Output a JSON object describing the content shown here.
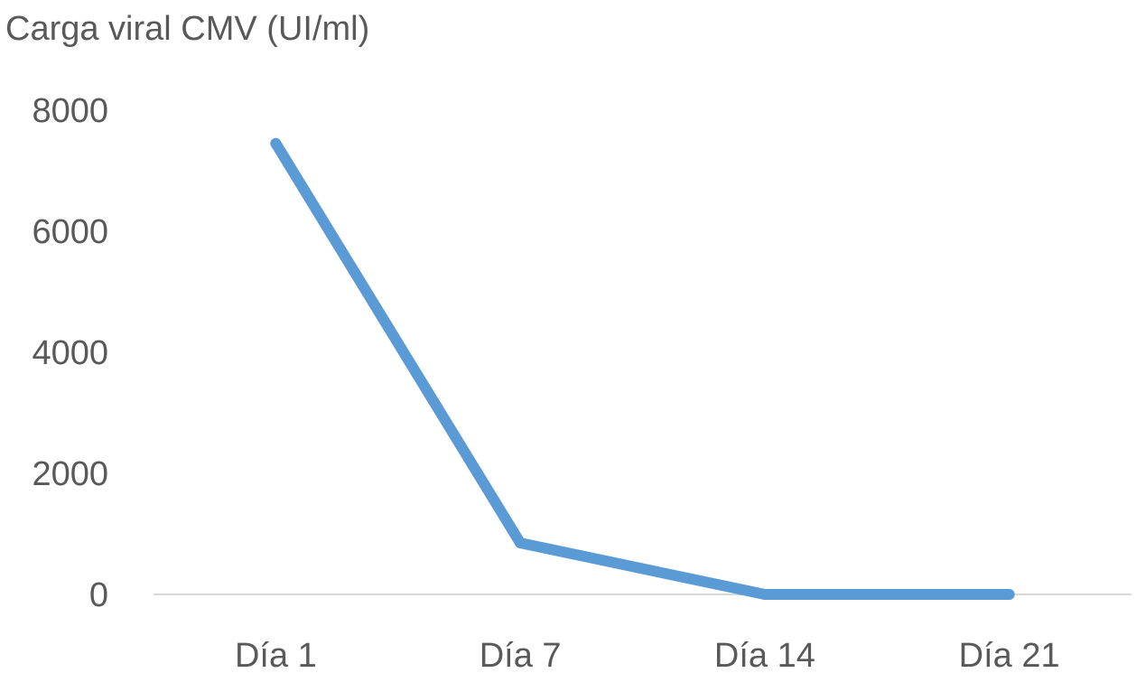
{
  "chart_data": {
    "type": "line",
    "title": "",
    "ylabel": "Carga viral CMV (UI/ml)",
    "xlabel": "",
    "categories": [
      "Día 1",
      "Día 7",
      "Día 14",
      "Día 21"
    ],
    "series": [
      {
        "values": [
          7450,
          850,
          0,
          0
        ],
        "color": "#5b9bd5"
      }
    ],
    "yticks": [
      "0",
      "2000",
      "4000",
      "6000",
      "8000"
    ],
    "ylim": [
      0,
      8000
    ],
    "grid": false,
    "axis_color": "#d9d9d9",
    "text_color": "#595959",
    "legend": "none"
  }
}
